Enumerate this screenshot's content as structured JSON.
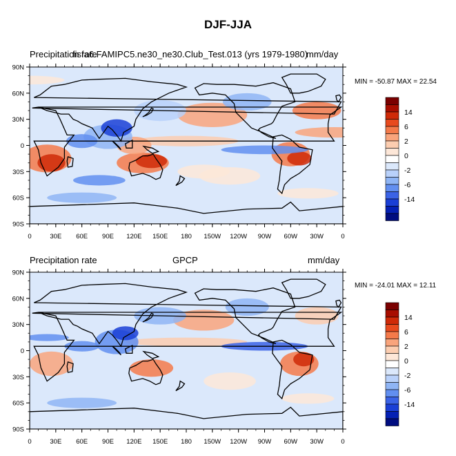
{
  "figure": {
    "title": "DJF-JJA"
  },
  "colorbar": {
    "labels": [
      "14",
      "6",
      "2",
      "0",
      "-2",
      "-6",
      "-14"
    ],
    "colors": [
      "#7a0000",
      "#a80d00",
      "#cf2a08",
      "#e84a1e",
      "#f47a4a",
      "#f9a47c",
      "#fccdb0",
      "#fde7d8",
      "#ffffff",
      "#dbe8fb",
      "#b9d1fa",
      "#8fb5f5",
      "#628ff0",
      "#3b63e6",
      "#1a3fd6",
      "#0420b4",
      "#000d80"
    ]
  },
  "chart_data": [
    {
      "type": "heatmap",
      "title": "fisfa6.FAMIPC5.ne30_ne30.Club_Test.013 (yrs 1979-1980)",
      "left_label": "Precipitation rate",
      "units": "mm/day",
      "min_max": "MIN = -50.87 MAX =  22.54",
      "x_ticks": [
        "0",
        "30E",
        "60E",
        "90E",
        "120E",
        "150E",
        "180",
        "150W",
        "120W",
        "90W",
        "60W",
        "30W",
        "0"
      ],
      "y_ticks": [
        "90N",
        "60N",
        "30N",
        "0",
        "30S",
        "60S",
        "90S"
      ],
      "xlim": [
        0,
        360
      ],
      "ylim": [
        -90,
        90
      ]
    },
    {
      "type": "heatmap",
      "title": "GPCP",
      "left_label": "Precipitation rate",
      "units": "mm/day",
      "min_max": "MIN = -24.01 MAX =  12.11",
      "x_ticks": [
        "0",
        "30E",
        "60E",
        "90E",
        "120E",
        "150E",
        "180",
        "150W",
        "120W",
        "90W",
        "60W",
        "30W",
        "0"
      ],
      "y_ticks": [
        "90N",
        "60N",
        "30N",
        "0",
        "30S",
        "60S",
        "90S"
      ],
      "xlim": [
        0,
        360
      ],
      "ylim": [
        -90,
        90
      ]
    }
  ]
}
